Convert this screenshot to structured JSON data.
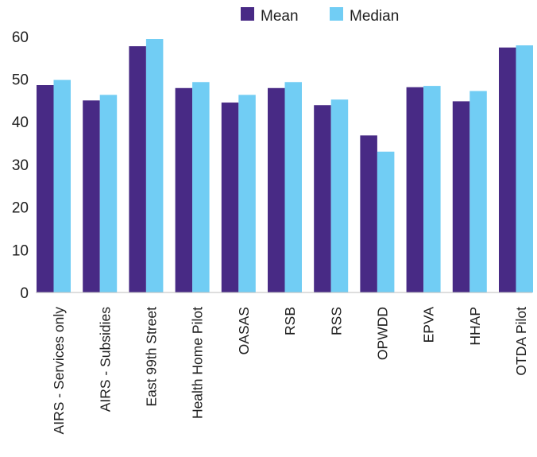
{
  "chart_data": {
    "type": "bar",
    "categories": [
      "AIRS - Services only",
      "AIRS - Subsidies",
      "East 99th Street",
      "Health Home Pilot",
      "OASAS",
      "RSB",
      "RSS",
      "OPWDD",
      "EPVA",
      "HHAP",
      "OTDA Pilot"
    ],
    "series": [
      {
        "name": "Mean",
        "color": "#482a85",
        "values": [
          48.6,
          45.0,
          57.7,
          47.9,
          44.5,
          47.9,
          43.9,
          36.8,
          48.1,
          44.8,
          57.4
        ]
      },
      {
        "name": "Median",
        "color": "#71cdf4",
        "values": [
          49.8,
          46.3,
          59.4,
          49.3,
          46.3,
          49.3,
          45.2,
          33.0,
          48.4,
          47.2,
          57.9
        ]
      }
    ],
    "yticks": [
      0,
      10,
      20,
      30,
      40,
      50,
      60
    ],
    "ylim": [
      0,
      62
    ],
    "legend_position": "top-center",
    "grid": false
  }
}
